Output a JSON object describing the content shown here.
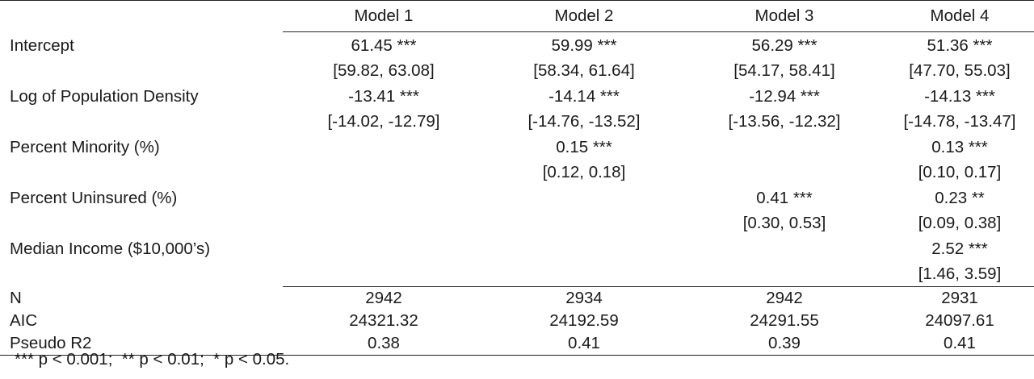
{
  "columns": [
    "Model 1",
    "Model 2",
    "Model 3",
    "Model 4"
  ],
  "rows": [
    {
      "label": "Intercept",
      "est": [
        "61.45 ***",
        "59.99 ***",
        "56.29 ***",
        "51.36 ***"
      ],
      "ci": [
        "[59.82, 63.08]",
        "[58.34, 61.64]",
        "[54.17, 58.41]",
        "[47.70, 55.03]"
      ]
    },
    {
      "label": "Log of Population Density",
      "est": [
        "-13.41 ***",
        "-14.14 ***",
        "-12.94 ***",
        "-14.13 ***"
      ],
      "ci": [
        "[-14.02, -12.79]",
        "[-14.76, -13.52]",
        "[-13.56, -12.32]",
        "[-14.78, -13.47]"
      ]
    },
    {
      "label": "Percent Minority (%)",
      "est": [
        "",
        "0.15 ***",
        "",
        "0.13 ***"
      ],
      "ci": [
        "",
        "[0.12, 0.18]",
        "",
        "[0.10, 0.17]"
      ]
    },
    {
      "label": "Percent Uninsured (%)",
      "est": [
        "",
        "",
        "0.41 ***",
        "0.23 **"
      ],
      "ci": [
        "",
        "",
        "[0.30, 0.53]",
        "[0.09, 0.38]"
      ]
    },
    {
      "label": "Median Income ($10,000’s)",
      "est": [
        "",
        "",
        "",
        "2.52 ***"
      ],
      "ci": [
        "",
        "",
        "",
        "[1.46, 3.59]"
      ]
    }
  ],
  "stats": [
    {
      "label": "N",
      "values": [
        "2942",
        "2934",
        "2942",
        "2931"
      ]
    },
    {
      "label": "AIC",
      "values": [
        "24321.32",
        "24192.59",
        "24291.55",
        "24097.61"
      ]
    },
    {
      "label": "Pseudo R2",
      "values": [
        "0.38",
        "0.41",
        "0.39",
        "0.41"
      ]
    }
  ],
  "note": "*** p < 0.001;  ** p < 0.01;  * p < 0.05."
}
